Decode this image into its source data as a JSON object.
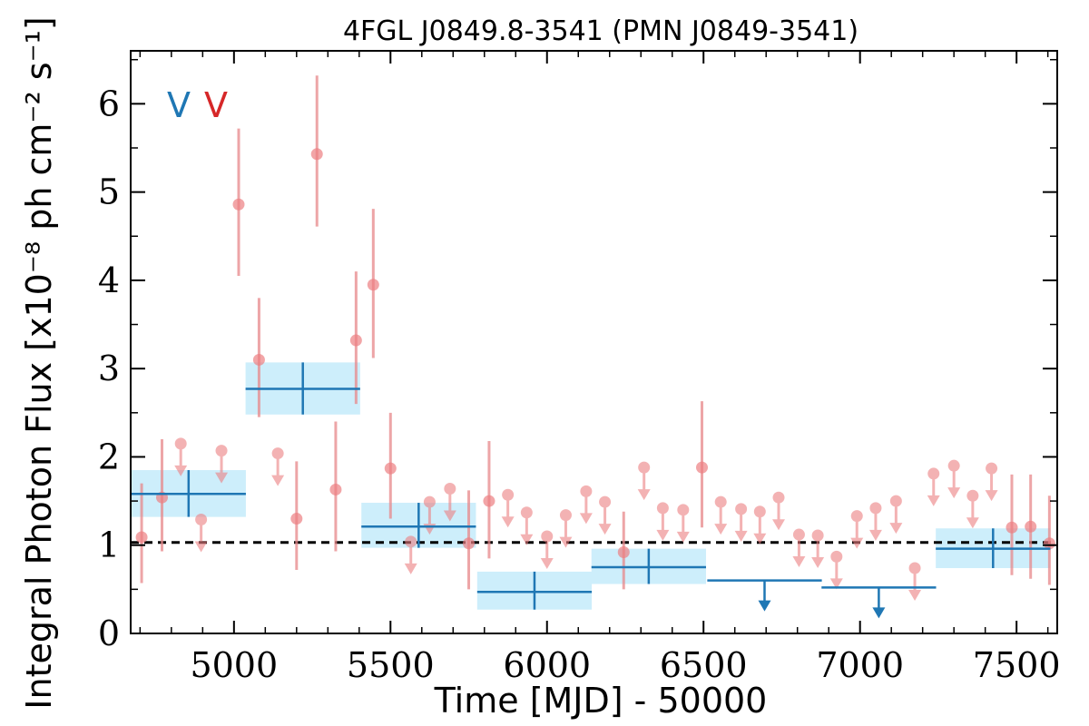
{
  "chart_data": {
    "type": "scatter",
    "title": "4FGL J0849.8-3541 (PMN J0849-3541)",
    "xlabel": "Time [MJD] - 50000",
    "ylabel": "Integral Photon Flux [x10⁻⁸ ph cm⁻² s⁻¹]",
    "xlim": [
      4670,
      7630
    ],
    "ylim": [
      0,
      6.6
    ],
    "xticks": [
      5000,
      5500,
      6000,
      6500,
      7000,
      7500
    ],
    "yticks": [
      0,
      1,
      2,
      3,
      4,
      5,
      6
    ],
    "grid": false,
    "mean_line": 1.03,
    "legend": {
      "position": "top-left",
      "entries": [
        {
          "label": "V",
          "color": "#1f77b4"
        },
        {
          "label": "V",
          "color": "#d62728"
        }
      ]
    },
    "colors": {
      "long_bins": "#1f77b4",
      "long_bins_band": "#cdeefb",
      "short_bins": "#e8888a",
      "short_bins_marker": "#ec7f82"
    },
    "series": [
      {
        "key": "long_bins",
        "bin_halfwidth": 183,
        "points": [
          {
            "x": 4855,
            "y": 1.58,
            "ylo": 1.32,
            "yhi": 1.85,
            "ul": false
          },
          {
            "x": 5220,
            "y": 2.77,
            "ylo": 2.48,
            "yhi": 3.07,
            "ul": false
          },
          {
            "x": 5590,
            "y": 1.21,
            "ylo": 0.97,
            "yhi": 1.48,
            "ul": false
          },
          {
            "x": 5960,
            "y": 0.47,
            "ylo": 0.27,
            "yhi": 0.7,
            "ul": false
          },
          {
            "x": 6325,
            "y": 0.75,
            "ylo": 0.56,
            "yhi": 0.96,
            "ul": false
          },
          {
            "x": 6695,
            "y": 0.6,
            "ul": true
          },
          {
            "x": 7060,
            "y": 0.52,
            "ul": true
          },
          {
            "x": 7425,
            "y": 0.96,
            "ylo": 0.74,
            "yhi": 1.19,
            "ul": false
          }
        ]
      },
      {
        "key": "short_bins",
        "points": [
          {
            "x": 4705,
            "y": 1.09,
            "ylo": 0.57,
            "yhi": 1.7,
            "ul": false
          },
          {
            "x": 4770,
            "y": 1.54,
            "ylo": 0.93,
            "yhi": 2.2,
            "ul": false
          },
          {
            "x": 4830,
            "y": 2.15,
            "ul": true
          },
          {
            "x": 4895,
            "y": 1.29,
            "ul": true
          },
          {
            "x": 4960,
            "y": 2.07,
            "ul": true
          },
          {
            "x": 5015,
            "y": 4.86,
            "ylo": 4.05,
            "yhi": 5.72,
            "ul": false
          },
          {
            "x": 5080,
            "y": 3.1,
            "ylo": 2.45,
            "yhi": 3.8,
            "ul": false
          },
          {
            "x": 5140,
            "y": 2.04,
            "ul": true
          },
          {
            "x": 5200,
            "y": 1.3,
            "ylo": 0.72,
            "yhi": 1.95,
            "ul": false
          },
          {
            "x": 5265,
            "y": 5.43,
            "ylo": 4.61,
            "yhi": 6.32,
            "ul": false
          },
          {
            "x": 5325,
            "y": 1.63,
            "ylo": 0.93,
            "yhi": 2.4,
            "ul": false
          },
          {
            "x": 5390,
            "y": 3.32,
            "ylo": 2.6,
            "yhi": 4.1,
            "ul": false
          },
          {
            "x": 5445,
            "y": 3.95,
            "ylo": 3.12,
            "yhi": 4.81,
            "ul": false
          },
          {
            "x": 5500,
            "y": 1.87,
            "ylo": 1.3,
            "yhi": 2.5,
            "ul": false
          },
          {
            "x": 5565,
            "y": 1.04,
            "ul": true
          },
          {
            "x": 5625,
            "y": 1.49,
            "ul": true
          },
          {
            "x": 5690,
            "y": 1.64,
            "ul": true
          },
          {
            "x": 5750,
            "y": 1.02,
            "ylo": 0.5,
            "yhi": 1.62,
            "ul": false
          },
          {
            "x": 5815,
            "y": 1.5,
            "ylo": 0.85,
            "yhi": 2.18,
            "ul": false
          },
          {
            "x": 5875,
            "y": 1.57,
            "ul": true
          },
          {
            "x": 5935,
            "y": 1.37,
            "ul": true
          },
          {
            "x": 6000,
            "y": 1.1,
            "ul": true
          },
          {
            "x": 6060,
            "y": 1.34,
            "ul": true
          },
          {
            "x": 6125,
            "y": 1.61,
            "ul": true
          },
          {
            "x": 6185,
            "y": 1.49,
            "ul": true
          },
          {
            "x": 6245,
            "y": 0.92,
            "ylo": 0.5,
            "yhi": 1.38,
            "ul": false
          },
          {
            "x": 6310,
            "y": 1.88,
            "ul": true
          },
          {
            "x": 6370,
            "y": 1.42,
            "ul": true
          },
          {
            "x": 6435,
            "y": 1.4,
            "ul": true
          },
          {
            "x": 6495,
            "y": 1.88,
            "ylo": 1.2,
            "yhi": 2.63,
            "ul": false
          },
          {
            "x": 6555,
            "y": 1.49,
            "ul": true
          },
          {
            "x": 6620,
            "y": 1.41,
            "ul": true
          },
          {
            "x": 6680,
            "y": 1.38,
            "ul": true
          },
          {
            "x": 6740,
            "y": 1.54,
            "ul": true
          },
          {
            "x": 6805,
            "y": 1.12,
            "ul": true
          },
          {
            "x": 6865,
            "y": 1.11,
            "ul": true
          },
          {
            "x": 6925,
            "y": 0.87,
            "ul": true
          },
          {
            "x": 6990,
            "y": 1.33,
            "ul": true
          },
          {
            "x": 7050,
            "y": 1.42,
            "ul": true
          },
          {
            "x": 7115,
            "y": 1.5,
            "ul": true
          },
          {
            "x": 7175,
            "y": 0.74,
            "ul": true
          },
          {
            "x": 7235,
            "y": 1.81,
            "ul": true
          },
          {
            "x": 7300,
            "y": 1.9,
            "ul": true
          },
          {
            "x": 7360,
            "y": 1.56,
            "ul": true
          },
          {
            "x": 7420,
            "y": 1.87,
            "ul": true
          },
          {
            "x": 7485,
            "y": 1.2,
            "ylo": 0.66,
            "yhi": 1.8,
            "ul": false
          },
          {
            "x": 7545,
            "y": 1.21,
            "ylo": 0.62,
            "yhi": 1.8,
            "ul": false
          },
          {
            "x": 7605,
            "y": 1.02,
            "ylo": 0.55,
            "yhi": 1.56,
            "ul": false
          }
        ]
      }
    ]
  }
}
